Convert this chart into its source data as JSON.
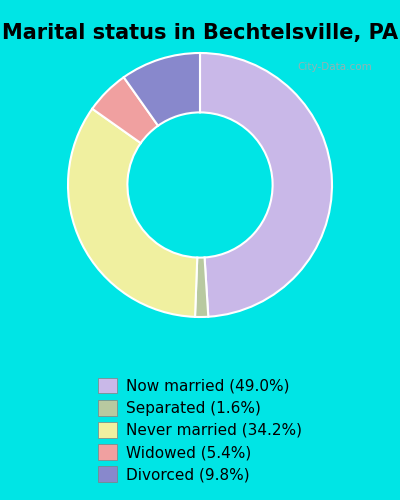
{
  "title": "Marital status in Bechtelsville, PA",
  "slices": [
    {
      "label": "Now married (49.0%)",
      "value": 49.0,
      "color": "#c9b8e8"
    },
    {
      "label": "Separated (1.6%)",
      "value": 1.6,
      "color": "#b8c9a0"
    },
    {
      "label": "Never married (34.2%)",
      "value": 34.2,
      "color": "#f0f0a0"
    },
    {
      "label": "Widowed (5.4%)",
      "value": 5.4,
      "color": "#f0a0a0"
    },
    {
      "label": "Divorced (9.8%)",
      "value": 9.8,
      "color": "#8888cc"
    }
  ],
  "bg_color_outer": "#00e5e5",
  "bg_color_inner": "#d8edd8",
  "watermark": "City-Data.com",
  "title_fontsize": 15,
  "legend_fontsize": 11,
  "start_angle": 90
}
